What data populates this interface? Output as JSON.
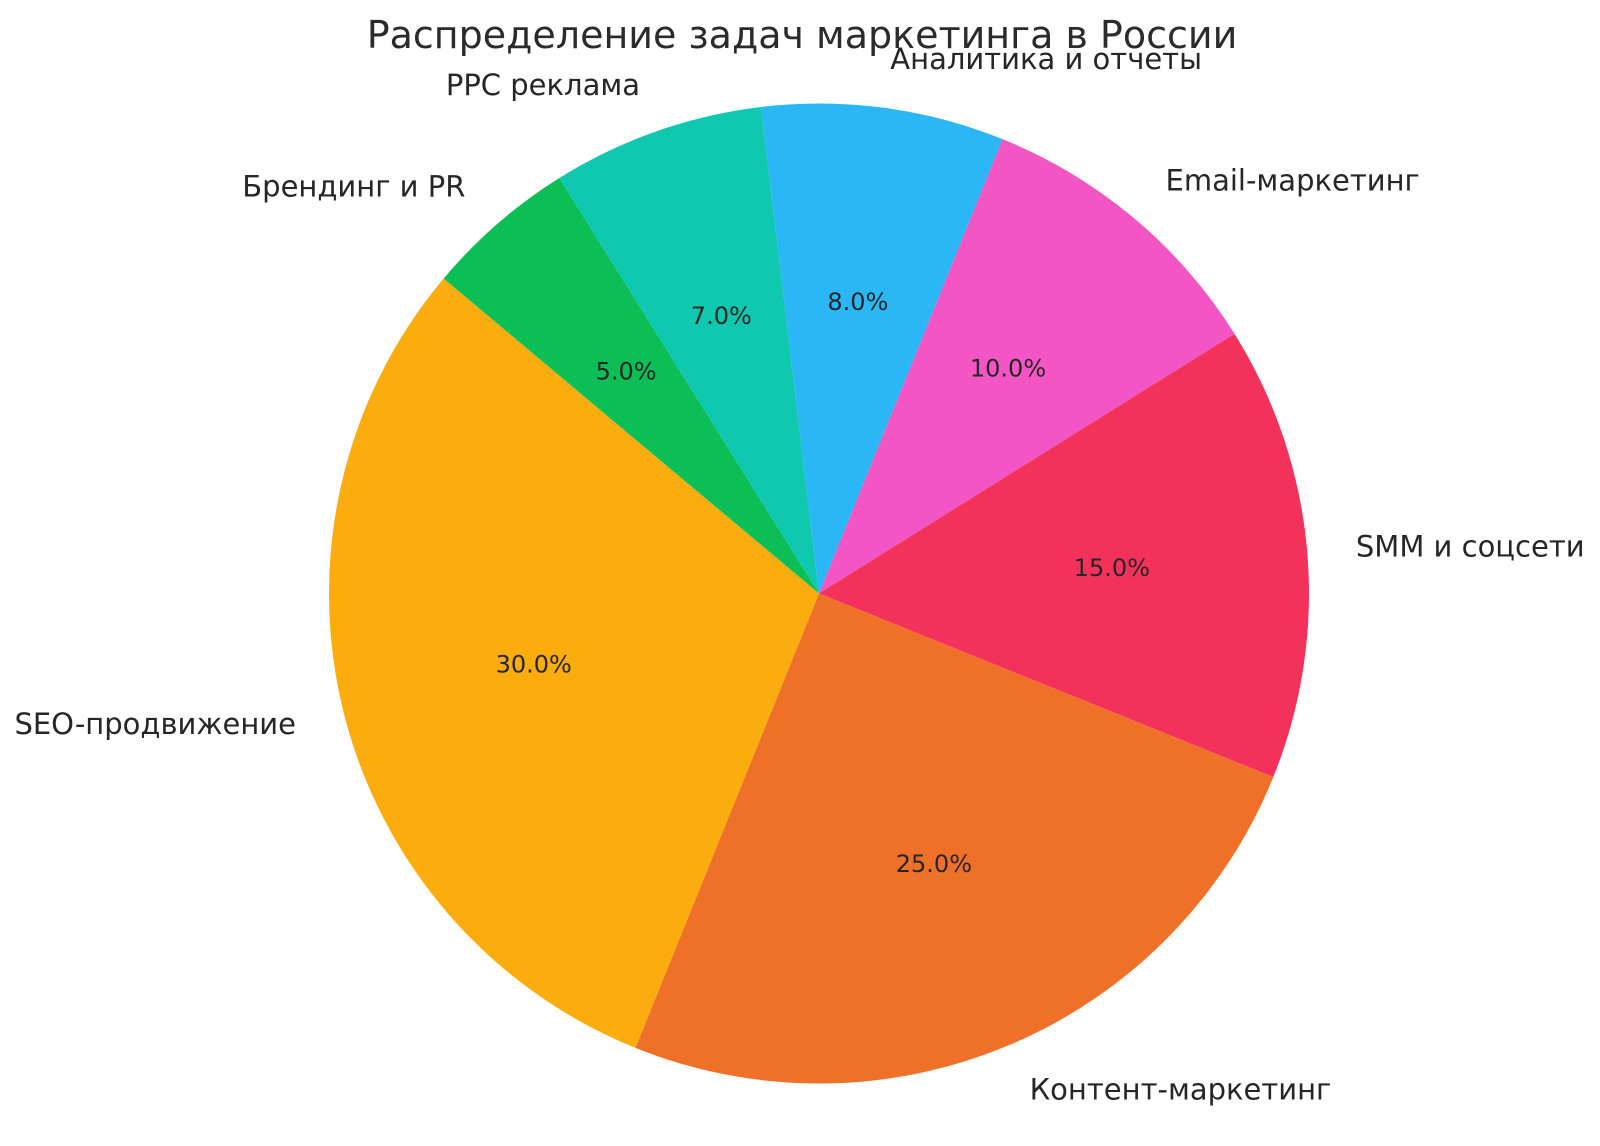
{
  "chart_data": {
    "type": "pie",
    "title": "Распределение задач маркетинга в России",
    "slices": [
      {
        "label": "Аналитика и отчеты",
        "value": 8.0,
        "pct_label": "8.0%",
        "color": "#2bb7f5"
      },
      {
        "label": "Email-маркетинг",
        "value": 10.0,
        "pct_label": "10.0%",
        "color": "#f355c5"
      },
      {
        "label": "SMM и соцсети",
        "value": 15.0,
        "pct_label": "15.0%",
        "color": "#f2325b"
      },
      {
        "label": "Контент-маркетинг",
        "value": 25.0,
        "pct_label": "25.0%",
        "color": "#ef7129"
      },
      {
        "label": "SEO-продвижение",
        "value": 30.0,
        "pct_label": "30.0%",
        "color": "#fbac0f"
      },
      {
        "label": "Брендинг и PR",
        "value": 5.0,
        "pct_label": "5.0%",
        "color": "#0cbe56"
      },
      {
        "label": "PPC реклама",
        "value": 7.0,
        "pct_label": "7.0%",
        "color": "#10c8b0"
      }
    ],
    "layout": {
      "start_angle_deg": 96.8,
      "clockwise": true,
      "label_distance": 1.1,
      "pct_distance": 0.6,
      "background": "#ffffff",
      "text_color": "#262626",
      "legend": "none",
      "grid": "off"
    }
  }
}
